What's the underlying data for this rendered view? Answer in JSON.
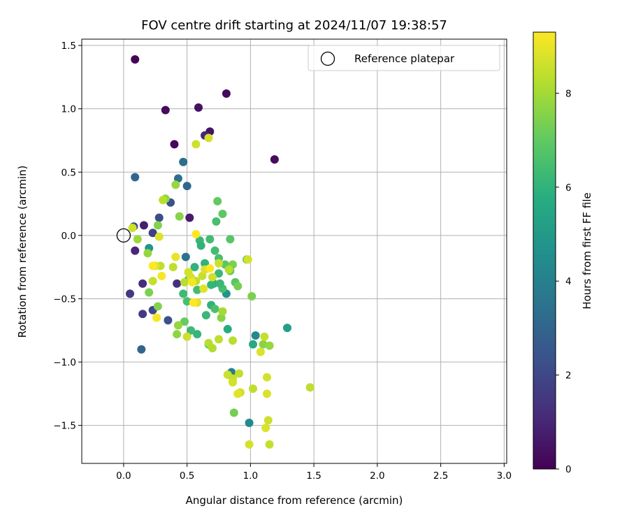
{
  "chart_data": {
    "type": "scatter",
    "title": "FOV centre drift starting at 2024/11/07 19:38:57",
    "xlabel": "Angular distance from reference (arcmin)",
    "ylabel": "Rotation from reference (arcmin)",
    "xlim": [
      -0.33,
      3.02
    ],
    "ylim": [
      -1.8,
      1.55
    ],
    "xticks": [
      0.0,
      0.5,
      1.0,
      1.5,
      2.0,
      2.5,
      3.0
    ],
    "xtick_labels": [
      "0.0",
      "0.5",
      "1.0",
      "1.5",
      "2.0",
      "2.5",
      "3.0"
    ],
    "yticks": [
      1.5,
      1.0,
      0.5,
      0.0,
      -0.5,
      -1.0,
      -1.5
    ],
    "ytick_labels": [
      "1.5",
      "1.0",
      "0.5",
      "0.0",
      "−0.5",
      "−1.0",
      "−1.5"
    ],
    "grid": true,
    "colormap": "viridis",
    "colorbar": {
      "label": "Hours from first FF file",
      "min": 0,
      "max": 9.3,
      "ticks": [
        0,
        2,
        4,
        6,
        8
      ],
      "tick_labels": [
        "0",
        "2",
        "4",
        "6",
        "8"
      ]
    },
    "legend": {
      "placement": "top-right",
      "entries": [
        {
          "label": "Reference platepar",
          "marker": "open-circle"
        }
      ]
    },
    "reference_point": {
      "x": 0.0,
      "y": 0.0
    },
    "points": [
      {
        "x": 0.09,
        "y": 1.39,
        "t": 0.1
      },
      {
        "x": 0.81,
        "y": 1.12,
        "t": 0.2
      },
      {
        "x": 0.59,
        "y": 1.01,
        "t": 0.4
      },
      {
        "x": 0.33,
        "y": 0.99,
        "t": 0.3
      },
      {
        "x": 0.68,
        "y": 0.82,
        "t": 0.5
      },
      {
        "x": 0.64,
        "y": 0.79,
        "t": 1.0
      },
      {
        "x": 0.4,
        "y": 0.72,
        "t": 0.2
      },
      {
        "x": 1.19,
        "y": 0.6,
        "t": 0.3
      },
      {
        "x": 0.52,
        "y": 0.14,
        "t": 0.7
      },
      {
        "x": 0.16,
        "y": 0.08,
        "t": 0.8
      },
      {
        "x": 0.09,
        "y": -0.12,
        "t": 1.0
      },
      {
        "x": 0.15,
        "y": -0.38,
        "t": 1.2
      },
      {
        "x": 0.05,
        "y": -0.46,
        "t": 1.5
      },
      {
        "x": 0.42,
        "y": -0.38,
        "t": 1.3
      },
      {
        "x": 0.15,
        "y": -0.62,
        "t": 1.6
      },
      {
        "x": 0.23,
        "y": 0.02,
        "t": 1.8
      },
      {
        "x": 0.08,
        "y": 0.07,
        "t": 2.0
      },
      {
        "x": 0.28,
        "y": 0.14,
        "t": 2.2
      },
      {
        "x": 0.37,
        "y": 0.26,
        "t": 2.4
      },
      {
        "x": 0.23,
        "y": -0.59,
        "t": 2.0
      },
      {
        "x": 0.35,
        "y": -0.67,
        "t": 2.3
      },
      {
        "x": 0.14,
        "y": -0.9,
        "t": 3.0
      },
      {
        "x": 0.09,
        "y": 0.46,
        "t": 3.0
      },
      {
        "x": 0.47,
        "y": 0.58,
        "t": 3.3
      },
      {
        "x": 0.5,
        "y": 0.39,
        "t": 3.0
      },
      {
        "x": 0.43,
        "y": 0.45,
        "t": 3.4
      },
      {
        "x": 0.49,
        "y": -0.17,
        "t": 3.5
      },
      {
        "x": 0.2,
        "y": -0.1,
        "t": 4.8
      },
      {
        "x": 0.99,
        "y": -1.48,
        "t": 4.3
      },
      {
        "x": 1.04,
        "y": -0.79,
        "t": 4.4
      },
      {
        "x": 0.85,
        "y": -1.08,
        "t": 4.0
      },
      {
        "x": 0.81,
        "y": -0.46,
        "t": 4.8
      },
      {
        "x": 1.29,
        "y": -0.73,
        "t": 5.2
      },
      {
        "x": 1.02,
        "y": -0.86,
        "t": 5.6
      },
      {
        "x": 0.82,
        "y": -0.74,
        "t": 5.7
      },
      {
        "x": 0.67,
        "y": -0.86,
        "t": 6.5
      },
      {
        "x": 0.71,
        "y": -0.38,
        "t": 5.8
      },
      {
        "x": 0.75,
        "y": -0.3,
        "t": 6.2
      },
      {
        "x": 0.78,
        "y": -0.42,
        "t": 6.5
      },
      {
        "x": 0.64,
        "y": -0.22,
        "t": 6.0
      },
      {
        "x": 0.6,
        "y": -0.04,
        "t": 6.2
      },
      {
        "x": 0.68,
        "y": -0.03,
        "t": 6.4
      },
      {
        "x": 0.61,
        "y": -0.08,
        "t": 6.0
      },
      {
        "x": 0.72,
        "y": -0.12,
        "t": 6.4
      },
      {
        "x": 0.73,
        "y": 0.11,
        "t": 6.5
      },
      {
        "x": 0.78,
        "y": 0.17,
        "t": 6.9
      },
      {
        "x": 0.74,
        "y": 0.27,
        "t": 7.0
      },
      {
        "x": 0.84,
        "y": -0.03,
        "t": 6.8
      },
      {
        "x": 0.75,
        "y": -0.18,
        "t": 6.5
      },
      {
        "x": 0.8,
        "y": -0.23,
        "t": 6.9
      },
      {
        "x": 0.86,
        "y": -0.23,
        "t": 7.4
      },
      {
        "x": 0.84,
        "y": -0.28,
        "t": 7.0
      },
      {
        "x": 0.88,
        "y": -0.37,
        "t": 6.8
      },
      {
        "x": 0.9,
        "y": -0.4,
        "t": 7.3
      },
      {
        "x": 0.76,
        "y": -0.38,
        "t": 6.2
      },
      {
        "x": 0.69,
        "y": -0.39,
        "t": 6.1
      },
      {
        "x": 0.56,
        "y": -0.25,
        "t": 6.0
      },
      {
        "x": 0.51,
        "y": -0.35,
        "t": 6.6
      },
      {
        "x": 0.47,
        "y": -0.46,
        "t": 6.3
      },
      {
        "x": 0.5,
        "y": -0.52,
        "t": 6.5
      },
      {
        "x": 0.58,
        "y": -0.43,
        "t": 6.4
      },
      {
        "x": 0.65,
        "y": -0.63,
        "t": 6.2
      },
      {
        "x": 0.69,
        "y": -0.55,
        "t": 6.0
      },
      {
        "x": 0.72,
        "y": -0.58,
        "t": 6.6
      },
      {
        "x": 0.58,
        "y": -0.78,
        "t": 6.1
      },
      {
        "x": 0.53,
        "y": -0.75,
        "t": 6.3
      },
      {
        "x": 0.48,
        "y": -0.68,
        "t": 7.1
      },
      {
        "x": 0.77,
        "y": -0.65,
        "t": 7.6
      },
      {
        "x": 0.78,
        "y": -0.6,
        "t": 8.0
      },
      {
        "x": 0.87,
        "y": -1.4,
        "t": 7.3
      },
      {
        "x": 0.97,
        "y": -0.19,
        "t": 7.3
      },
      {
        "x": 1.01,
        "y": -0.48,
        "t": 7.4
      },
      {
        "x": 1.1,
        "y": -0.86,
        "t": 7.6
      },
      {
        "x": 1.15,
        "y": -0.87,
        "t": 7.8
      },
      {
        "x": 0.19,
        "y": -0.14,
        "t": 7.8
      },
      {
        "x": 0.11,
        "y": -0.03,
        "t": 7.9
      },
      {
        "x": 0.2,
        "y": -0.45,
        "t": 7.4
      },
      {
        "x": 0.27,
        "y": 0.08,
        "t": 7.5
      },
      {
        "x": 0.44,
        "y": 0.15,
        "t": 7.6
      },
      {
        "x": 0.33,
        "y": 0.29,
        "t": 7.7
      },
      {
        "x": 0.41,
        "y": 0.4,
        "t": 7.8
      },
      {
        "x": 0.27,
        "y": -0.56,
        "t": 7.5
      },
      {
        "x": 0.43,
        "y": -0.71,
        "t": 7.8
      },
      {
        "x": 0.42,
        "y": -0.78,
        "t": 7.7
      },
      {
        "x": 0.67,
        "y": -0.85,
        "t": 8.3
      },
      {
        "x": 0.7,
        "y": -0.89,
        "t": 8.2
      },
      {
        "x": 0.75,
        "y": -0.82,
        "t": 8.4
      },
      {
        "x": 0.86,
        "y": -0.83,
        "t": 8.3
      },
      {
        "x": 0.82,
        "y": -1.1,
        "t": 8.6
      },
      {
        "x": 0.86,
        "y": -1.13,
        "t": 8.5
      },
      {
        "x": 0.86,
        "y": -1.16,
        "t": 8.7
      },
      {
        "x": 0.91,
        "y": -1.09,
        "t": 8.4
      },
      {
        "x": 0.92,
        "y": -1.24,
        "t": 8.6
      },
      {
        "x": 0.9,
        "y": -1.25,
        "t": 8.9
      },
      {
        "x": 1.02,
        "y": -1.21,
        "t": 8.4
      },
      {
        "x": 1.13,
        "y": -1.12,
        "t": 8.7
      },
      {
        "x": 1.13,
        "y": -1.25,
        "t": 8.8
      },
      {
        "x": 1.14,
        "y": -1.46,
        "t": 8.6
      },
      {
        "x": 1.12,
        "y": -1.52,
        "t": 8.8
      },
      {
        "x": 0.99,
        "y": -1.65,
        "t": 8.7
      },
      {
        "x": 1.15,
        "y": -1.65,
        "t": 8.5
      },
      {
        "x": 1.47,
        "y": -1.2,
        "t": 8.4
      },
      {
        "x": 1.11,
        "y": -0.8,
        "t": 8.5
      },
      {
        "x": 1.08,
        "y": -0.92,
        "t": 8.8
      },
      {
        "x": 0.98,
        "y": -0.19,
        "t": 8.7
      },
      {
        "x": 0.57,
        "y": 0.72,
        "t": 8.6
      },
      {
        "x": 0.67,
        "y": 0.77,
        "t": 8.7
      },
      {
        "x": 0.31,
        "y": 0.28,
        "t": 8.3
      },
      {
        "x": 0.07,
        "y": 0.06,
        "t": 8.6
      },
      {
        "x": 0.28,
        "y": -0.01,
        "t": 8.8
      },
      {
        "x": 0.23,
        "y": -0.36,
        "t": 8.5
      },
      {
        "x": 0.29,
        "y": -0.24,
        "t": 8.4
      },
      {
        "x": 0.25,
        "y": -0.24,
        "t": 8.9
      },
      {
        "x": 0.41,
        "y": -0.17,
        "t": 9.0
      },
      {
        "x": 0.48,
        "y": -0.37,
        "t": 8.3
      },
      {
        "x": 0.57,
        "y": -0.36,
        "t": 8.4
      },
      {
        "x": 0.53,
        "y": -0.33,
        "t": 8.7
      },
      {
        "x": 0.62,
        "y": -0.32,
        "t": 8.5
      },
      {
        "x": 0.63,
        "y": -0.42,
        "t": 8.9
      },
      {
        "x": 0.64,
        "y": -0.27,
        "t": 8.8
      },
      {
        "x": 0.7,
        "y": -0.33,
        "t": 8.6
      },
      {
        "x": 0.75,
        "y": -0.22,
        "t": 8.6
      },
      {
        "x": 0.83,
        "y": -0.27,
        "t": 8.3
      },
      {
        "x": 0.51,
        "y": -0.29,
        "t": 8.7
      },
      {
        "x": 0.58,
        "y": -0.53,
        "t": 8.9
      },
      {
        "x": 0.5,
        "y": -0.8,
        "t": 8.6
      },
      {
        "x": 0.39,
        "y": -0.25,
        "t": 8.4
      },
      {
        "x": 0.57,
        "y": 0.01,
        "t": 9.3
      },
      {
        "x": 0.23,
        "y": -0.24,
        "t": 9.3
      },
      {
        "x": 0.3,
        "y": -0.32,
        "t": 9.2
      },
      {
        "x": 0.26,
        "y": -0.65,
        "t": 9.2
      },
      {
        "x": 0.55,
        "y": -0.53,
        "t": 9.3
      },
      {
        "x": 0.68,
        "y": -0.26,
        "t": 9.3
      },
      {
        "x": 0.54,
        "y": -0.37,
        "t": 9.2
      }
    ]
  }
}
